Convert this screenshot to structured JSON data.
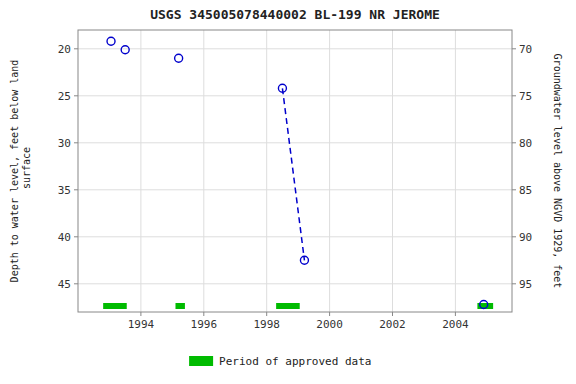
{
  "chart_data": {
    "type": "scatter",
    "title": "USGS 345005078440002 BL-199 NR JEROME",
    "ylabel": "Depth to water level, feet below land\n surface",
    "y2label": "Groundwater level above NGVD 1929, feet",
    "xlim": [
      1992.0,
      2005.8
    ],
    "xticks": [
      1994,
      1996,
      1998,
      2000,
      2002,
      2004
    ],
    "ylim": [
      48,
      18
    ],
    "yticks": [
      20,
      25,
      30,
      35,
      40,
      45
    ],
    "y2lim": [
      98,
      68
    ],
    "y2ticks": [
      70,
      75,
      80,
      85,
      90,
      95
    ],
    "grid": true,
    "legend": "bottom",
    "series": [
      {
        "type": "scatter",
        "marker": "circle",
        "color": "#0000cc",
        "x": [
          1993.05,
          1993.5,
          1995.2,
          1998.5,
          1999.2,
          2004.9
        ],
        "values": [
          19.2,
          20.1,
          21.0,
          24.2,
          42.5,
          47.2
        ]
      },
      {
        "type": "line",
        "line_style": "dashed",
        "color": "#0000cc",
        "x": [
          1998.5,
          1999.2
        ],
        "values": [
          24.2,
          42.5
        ]
      },
      {
        "type": "span",
        "name": "Period of approved data",
        "color": "#00bb00",
        "start": [
          1992.8,
          1995.1,
          1998.3,
          2004.7
        ],
        "end": [
          1993.55,
          1995.4,
          1999.05,
          2005.2
        ]
      }
    ]
  }
}
